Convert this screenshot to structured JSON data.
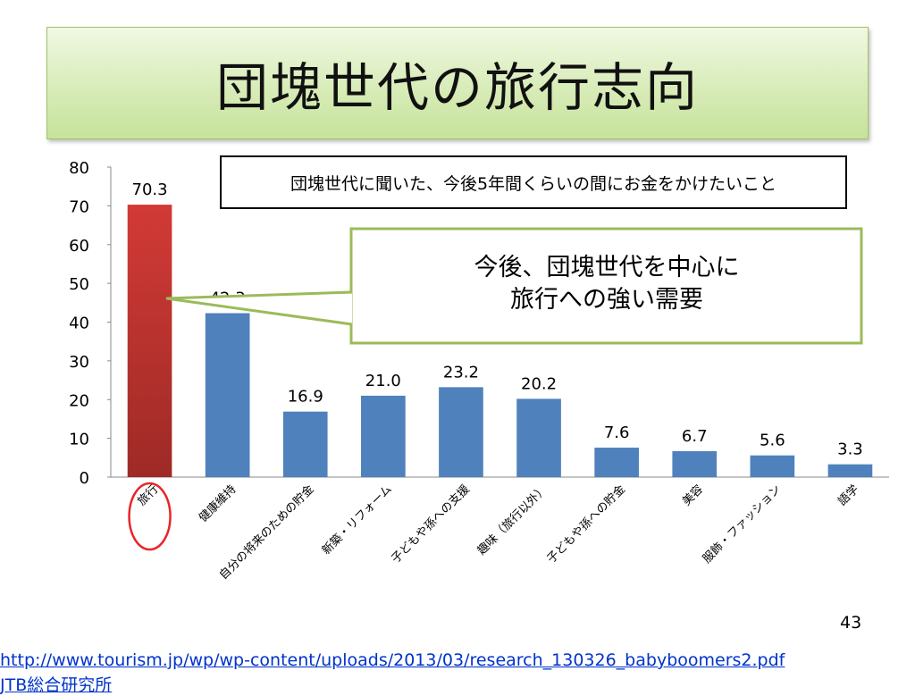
{
  "slide": {
    "title": "団塊世代の旅行志向",
    "subtitle": "団塊世代に聞いた、今後5年間くらいの間にお金をかけたいこと",
    "callout_line1": "今後、団塊世代を中心に",
    "callout_line2": "旅行への強い需要",
    "slide_number": "43",
    "source_url": "http://www.tourism.jp/wp/wp-content/uploads/2013/03/research_130326_babyboomers2.pdf",
    "source_org": "JTB総合研究所"
  },
  "colors": {
    "highlight_bar": "#c0392b",
    "bar": "#4f81bd",
    "circle": "#e8262a",
    "callout_border": "#9bbb59",
    "link": "#0033cc"
  },
  "chart_data": {
    "type": "bar",
    "categories": [
      "旅行",
      "健康維持",
      "自分の将来のための貯金",
      "新築・リフォーム",
      "子どもや孫への支援",
      "趣味（旅行以外）",
      "子どもや孫への貯金",
      "美容",
      "服飾・ファッション",
      "語学"
    ],
    "values": [
      70.3,
      42.3,
      16.9,
      21.0,
      23.2,
      20.2,
      7.6,
      6.7,
      5.6,
      3.3
    ],
    "value_labels": [
      "70.3",
      "42.3",
      "16.9",
      "21.0",
      "23.2",
      "20.2",
      "7.6",
      "6.7",
      "5.6",
      "3.3"
    ],
    "highlight_index": 0,
    "ylim": [
      0,
      80
    ],
    "yticks": [
      "0",
      "10",
      "20",
      "30",
      "40",
      "50",
      "60",
      "70",
      "80"
    ],
    "grid": false,
    "legend": "none"
  }
}
